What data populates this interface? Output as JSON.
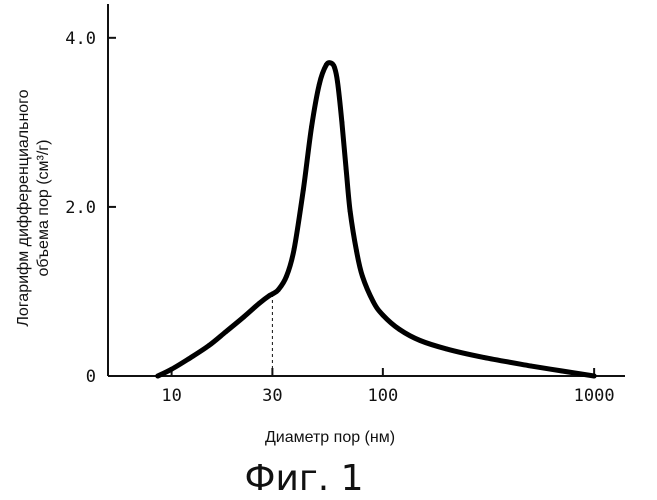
{
  "chart_data": {
    "type": "line",
    "title": "",
    "caption": "Фиг. 1",
    "xlabel": "Диаметр пор (нм)",
    "ylabel_line1": "Логарифм дифференциального",
    "ylabel_line2": "объема пор (см³/г)",
    "xscale": "log",
    "xlim": [
      5,
      1400
    ],
    "ylim": [
      0,
      4.4
    ],
    "xticks": [
      {
        "value": 10,
        "label": "10"
      },
      {
        "value": 30,
        "label": "30"
      },
      {
        "value": 100,
        "label": "100"
      },
      {
        "value": 1000,
        "label": "1000"
      }
    ],
    "yticks": [
      {
        "value": 0,
        "label": "0"
      },
      {
        "value": 2,
        "label": "2.0"
      },
      {
        "value": 4,
        "label": "4.0"
      }
    ],
    "grid": false,
    "line_color": "#000000",
    "marker_line": {
      "x": 30,
      "y": 0.97,
      "style": "dashed"
    },
    "series": [
      {
        "x": [
          8.6,
          10,
          12,
          15,
          18,
          22,
          26,
          29,
          30,
          32,
          35,
          38,
          42,
          46,
          50,
          54,
          57,
          59,
          61,
          64,
          67,
          70,
          75,
          80,
          90,
          100,
          120,
          150,
          200,
          300,
          500,
          700,
          1000
        ],
        "y": [
          0.0,
          0.08,
          0.2,
          0.36,
          0.52,
          0.7,
          0.86,
          0.95,
          0.97,
          1.02,
          1.18,
          1.5,
          2.2,
          2.95,
          3.45,
          3.68,
          3.7,
          3.65,
          3.48,
          3.0,
          2.45,
          1.95,
          1.48,
          1.18,
          0.88,
          0.72,
          0.55,
          0.42,
          0.32,
          0.22,
          0.12,
          0.06,
          0.0
        ]
      }
    ]
  }
}
